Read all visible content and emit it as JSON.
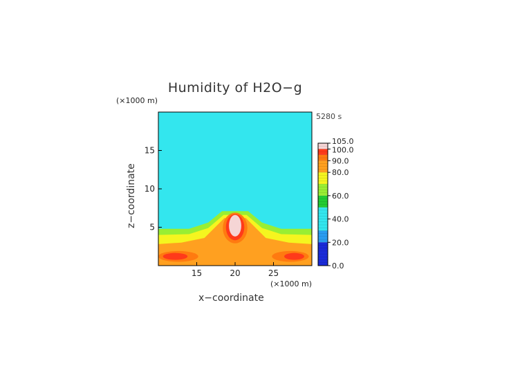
{
  "chart_data": {
    "type": "heatmap",
    "title": "Humidity of H2O−g",
    "time_label": "5280 s",
    "x_unit": "(×1000 m)",
    "y_unit": "(×1000 m)",
    "xlabel": "x−coordinate",
    "ylabel": "z−coordinate",
    "xlim": [
      10,
      30
    ],
    "ylim": [
      0,
      20
    ],
    "x_ticks": [
      15,
      20,
      25
    ],
    "y_ticks": [
      5,
      10,
      15
    ],
    "background_value": 45,
    "colorbar": {
      "range": [
        0,
        105
      ],
      "tick_values": [
        0,
        20,
        40,
        60,
        80,
        90,
        100,
        105
      ],
      "tick_labels": [
        "0.0",
        "20.0",
        "40.0",
        "60.0",
        "80.0",
        "90.0",
        "100.0",
        "105.0"
      ],
      "levels": [
        {
          "from": 0,
          "to": 20,
          "color": "#1a2bd8"
        },
        {
          "from": 20,
          "to": 30,
          "color": "#2a9cf0"
        },
        {
          "from": 30,
          "to": 50,
          "color": "#33e6ee"
        },
        {
          "from": 50,
          "to": 60,
          "color": "#22cc33"
        },
        {
          "from": 60,
          "to": 70,
          "color": "#99ee33"
        },
        {
          "from": 70,
          "to": 80,
          "color": "#f5f51f"
        },
        {
          "from": 80,
          "to": 90,
          "color": "#ffa020"
        },
        {
          "from": 90,
          "to": 95,
          "color": "#ff7a10"
        },
        {
          "from": 95,
          "to": 100,
          "color": "#ff3a1a"
        },
        {
          "from": 100,
          "to": 105,
          "color": "#f5d5d5"
        }
      ]
    },
    "regions": [
      {
        "level": 60,
        "shape": "polygon",
        "points": [
          [
            10,
            4.8
          ],
          [
            14,
            4.8
          ],
          [
            16.5,
            5.6
          ],
          [
            18.3,
            7.1
          ],
          [
            21.7,
            7.1
          ],
          [
            23.5,
            5.6
          ],
          [
            26,
            4.8
          ],
          [
            30,
            4.8
          ],
          [
            30,
            0
          ],
          [
            10,
            0
          ]
        ]
      },
      {
        "level": 70,
        "shape": "polygon",
        "points": [
          [
            10,
            4.0
          ],
          [
            14,
            4.1
          ],
          [
            16.5,
            4.9
          ],
          [
            18.5,
            6.6
          ],
          [
            21.5,
            6.6
          ],
          [
            23.5,
            4.9
          ],
          [
            26,
            4.1
          ],
          [
            30,
            4.0
          ],
          [
            30,
            0
          ],
          [
            10,
            0
          ]
        ]
      },
      {
        "level": 80,
        "shape": "polygon",
        "points": [
          [
            10,
            2.8
          ],
          [
            13,
            3.0
          ],
          [
            16,
            3.6
          ],
          [
            18.6,
            6.2
          ],
          [
            21.4,
            6.2
          ],
          [
            24,
            3.6
          ],
          [
            27,
            3.0
          ],
          [
            30,
            2.8
          ],
          [
            30,
            0
          ],
          [
            10,
            0
          ]
        ]
      },
      {
        "level": 90,
        "shape": "ellipse",
        "cx": 20,
        "cy": 4.9,
        "rx": 1.6,
        "ry": 2.0
      },
      {
        "level": 90,
        "shape": "ellipse",
        "cx": 12.6,
        "cy": 1.2,
        "rx": 2.6,
        "ry": 0.7
      },
      {
        "level": 90,
        "shape": "ellipse",
        "cx": 27.2,
        "cy": 1.2,
        "rx": 2.4,
        "ry": 0.7
      },
      {
        "level": 95,
        "shape": "ellipse",
        "cx": 20,
        "cy": 5.0,
        "rx": 1.2,
        "ry": 1.7
      },
      {
        "level": 95,
        "shape": "ellipse",
        "cx": 12.2,
        "cy": 1.2,
        "rx": 1.6,
        "ry": 0.45
      },
      {
        "level": 95,
        "shape": "ellipse",
        "cx": 27.7,
        "cy": 1.2,
        "rx": 1.3,
        "ry": 0.45
      },
      {
        "level": 100,
        "shape": "ellipse",
        "cx": 20,
        "cy": 5.2,
        "rx": 0.8,
        "ry": 1.4
      }
    ]
  }
}
